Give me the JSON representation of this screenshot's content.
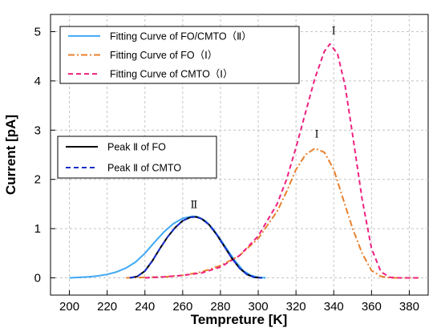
{
  "chart_data": {
    "type": "line",
    "xlabel": "Tempreture  [K]",
    "ylabel": "Current [pA]",
    "xlim": [
      190,
      390
    ],
    "ylim": [
      -0.35,
      5.35
    ],
    "xticks": [
      200,
      220,
      240,
      260,
      280,
      300,
      320,
      340,
      360,
      380
    ],
    "yticks": [
      0,
      1,
      2,
      3,
      4,
      5
    ],
    "grid": true,
    "legends": [
      {
        "placement": "top-left",
        "entries": [
          {
            "label": "Fitting Curve of FO/CMTO（Ⅱ）",
            "series": 0
          },
          {
            "label": "Fitting Curve of FO（Ⅰ）",
            "series": 1
          },
          {
            "label": "Fitting Curve of CMTO（Ⅰ）",
            "series": 2
          }
        ]
      },
      {
        "placement": "middle-left",
        "entries": [
          {
            "label": "Peak Ⅱ of FO",
            "series": 3
          },
          {
            "label": "Peak Ⅱ of CMTO",
            "series": 4
          }
        ]
      }
    ],
    "annotations": [
      {
        "text": "Ⅰ",
        "x": 340,
        "y": 4.95
      },
      {
        "text": "Ⅰ",
        "x": 331,
        "y": 2.85
      },
      {
        "text": "Ⅱ",
        "x": 266,
        "y": 1.42
      }
    ],
    "series": [
      {
        "name": "Fitting Curve of FO/CMTO（Ⅱ）",
        "color": "#3fa9f5",
        "dash": "solid",
        "x": [
          200,
          205,
          210,
          215,
          220,
          225,
          230,
          235,
          240,
          245,
          250,
          255,
          260,
          265,
          268,
          272,
          276,
          280,
          284,
          288,
          292,
          296,
          300,
          304
        ],
        "y": [
          0.0,
          0.01,
          0.02,
          0.04,
          0.07,
          0.12,
          0.2,
          0.32,
          0.5,
          0.72,
          0.93,
          1.1,
          1.21,
          1.25,
          1.24,
          1.16,
          1.0,
          0.78,
          0.55,
          0.33,
          0.15,
          0.05,
          0.01,
          0.0
        ]
      },
      {
        "name": "Fitting Curve of FO（Ⅰ）",
        "color": "#e8812e",
        "dash": "dashdot",
        "x": [
          230,
          240,
          250,
          260,
          270,
          280,
          290,
          300,
          310,
          315,
          320,
          325,
          330,
          335,
          340,
          345,
          350,
          355,
          360,
          365,
          370,
          375,
          380,
          385
        ],
        "y": [
          0.0,
          0.01,
          0.02,
          0.05,
          0.12,
          0.25,
          0.45,
          0.8,
          1.35,
          1.75,
          2.2,
          2.5,
          2.63,
          2.55,
          2.2,
          1.6,
          1.0,
          0.5,
          0.15,
          0.03,
          0.0,
          0.0,
          0.0,
          0.0
        ]
      },
      {
        "name": "Fitting Curve of CMTO（Ⅰ）",
        "color": "#ee2080",
        "dash": "dashed",
        "x": [
          240,
          250,
          260,
          270,
          280,
          290,
          300,
          310,
          315,
          320,
          325,
          330,
          335,
          338,
          342,
          346,
          350,
          355,
          360,
          365,
          370,
          375,
          380,
          385
        ],
        "y": [
          0.0,
          0.02,
          0.05,
          0.1,
          0.22,
          0.45,
          0.85,
          1.5,
          2.0,
          2.65,
          3.35,
          4.05,
          4.6,
          4.75,
          4.55,
          3.9,
          2.9,
          1.6,
          0.6,
          0.12,
          0.01,
          0.0,
          0.0,
          0.0
        ]
      },
      {
        "name": "Peak Ⅱ of FO",
        "color": "#000000",
        "dash": "solid",
        "x": [
          232,
          236,
          240,
          244,
          248,
          252,
          256,
          260,
          264,
          267,
          270,
          274,
          278,
          282,
          286,
          290,
          294,
          298,
          302
        ],
        "y": [
          0.0,
          0.03,
          0.14,
          0.35,
          0.6,
          0.83,
          1.02,
          1.16,
          1.23,
          1.24,
          1.2,
          1.08,
          0.88,
          0.64,
          0.4,
          0.2,
          0.07,
          0.01,
          0.0
        ]
      },
      {
        "name": "Peak Ⅱ of CMTO",
        "color": "#1a2fd0",
        "dash": "dashed",
        "x": [
          232,
          236,
          240,
          244,
          248,
          252,
          256,
          260,
          264,
          267,
          270,
          274,
          278,
          282,
          286,
          290,
          294,
          298,
          302
        ],
        "y": [
          0.0,
          0.03,
          0.14,
          0.35,
          0.6,
          0.83,
          1.02,
          1.16,
          1.23,
          1.24,
          1.2,
          1.08,
          0.88,
          0.64,
          0.4,
          0.2,
          0.07,
          0.01,
          0.0
        ]
      }
    ]
  }
}
